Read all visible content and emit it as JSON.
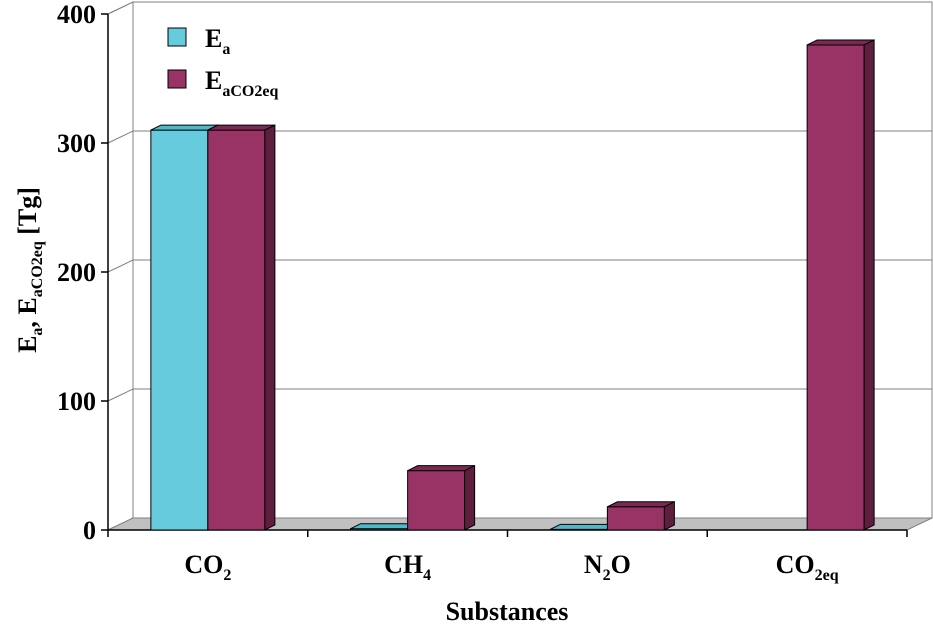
{
  "chart_data": {
    "type": "bar",
    "categories": [
      {
        "base": "CO",
        "sub": "2",
        "tail": ""
      },
      {
        "base": "CH",
        "sub": "4",
        "tail": ""
      },
      {
        "base": "N",
        "sub": "2",
        "tail": "O"
      },
      {
        "base": "CO",
        "sub": "2eq",
        "tail": ""
      }
    ],
    "series": [
      {
        "name": {
          "base": "E",
          "sub": "a"
        },
        "color": "#66CCDD",
        "side": "#3f8e9a",
        "top": "#4fb8c8",
        "values": [
          310,
          1,
          0.5,
          null
        ]
      },
      {
        "name": {
          "base": "E",
          "sub": "aCO2eq"
        },
        "color": "#993366",
        "side": "#5e1f3f",
        "top": "#7a2a52",
        "values": [
          310,
          46,
          18,
          376
        ]
      }
    ],
    "ylim": [
      0,
      400
    ],
    "yticks": [
      "0",
      "100",
      "200",
      "300",
      "400"
    ],
    "xlabel": "Substances",
    "ylabel": {
      "base": "E",
      "sub": "a",
      "mid": ", E",
      "sub2": "aCO2eq",
      "tail": " [Tg]"
    },
    "grid": true,
    "legend_position": "top-left"
  }
}
